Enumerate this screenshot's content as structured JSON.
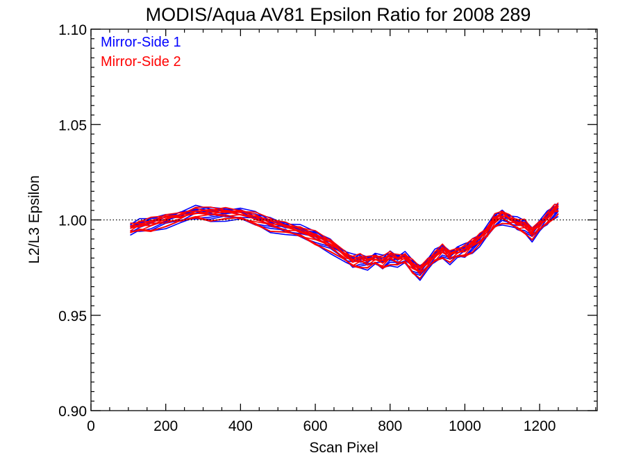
{
  "chart_data": {
    "type": "line",
    "title": "MODIS/Aqua AV81 Epsilon Ratio for 2008 289",
    "xlabel": "Scan Pixel",
    "ylabel": "L2/L3 Epsilon",
    "xlim": [
      0,
      1354
    ],
    "ylim": [
      0.9,
      1.1
    ],
    "x_ticks": [
      0,
      200,
      400,
      600,
      800,
      1000,
      1200
    ],
    "x_tick_labels": [
      "0",
      "200",
      "400",
      "600",
      "800",
      "1000",
      "1200"
    ],
    "y_ticks": [
      0.9,
      0.95,
      1.0,
      1.05,
      1.1
    ],
    "y_tick_labels": [
      "0.90",
      "0.95",
      "1.00",
      "1.05",
      "1.10"
    ],
    "grid": false,
    "reference_line": {
      "y": 1.0,
      "style": "dotted"
    },
    "legend": {
      "placement": "top-left",
      "entries": [
        "Mirror-Side 1",
        "Mirror-Side 2"
      ]
    },
    "colors": {
      "Mirror-Side 1": "#0000ff",
      "Mirror-Side 2": "#ff0000"
    },
    "x": [
      105,
      130,
      160,
      200,
      240,
      280,
      320,
      360,
      400,
      440,
      480,
      520,
      560,
      600,
      640,
      680,
      700,
      720,
      740,
      760,
      780,
      800,
      820,
      840,
      860,
      880,
      900,
      920,
      940,
      960,
      980,
      1000,
      1020,
      1040,
      1060,
      1080,
      1100,
      1120,
      1140,
      1160,
      1180,
      1200,
      1220,
      1240,
      1250
    ],
    "series_mean": [
      0.9955,
      0.997,
      0.998,
      1.0,
      1.0015,
      1.004,
      1.0035,
      1.0035,
      1.003,
      1.001,
      0.998,
      0.996,
      0.994,
      0.991,
      0.987,
      0.981,
      0.9785,
      0.979,
      0.978,
      0.9795,
      0.978,
      0.9805,
      0.979,
      0.98,
      0.976,
      0.973,
      0.977,
      0.981,
      0.984,
      0.981,
      0.983,
      0.984,
      0.987,
      0.99,
      0.994,
      1.0,
      1.002,
      1.0,
      0.998,
      0.997,
      0.993,
      0.997,
      1.001,
      1.005,
      1.006
    ],
    "series": [
      {
        "name": "Mirror-Side 1",
        "offsets": [
          -0.0035,
          -0.002,
          -0.001,
          0.0,
          0.0005,
          0.001,
          0.0015,
          0.002,
          0.0025,
          -0.0025
        ]
      },
      {
        "name": "Mirror-Side 2",
        "offsets": [
          -0.003,
          -0.0015,
          -0.0005,
          0.0002,
          0.0008,
          0.0012,
          0.0018,
          0.0022,
          -0.0028,
          0.0004
        ]
      }
    ]
  }
}
